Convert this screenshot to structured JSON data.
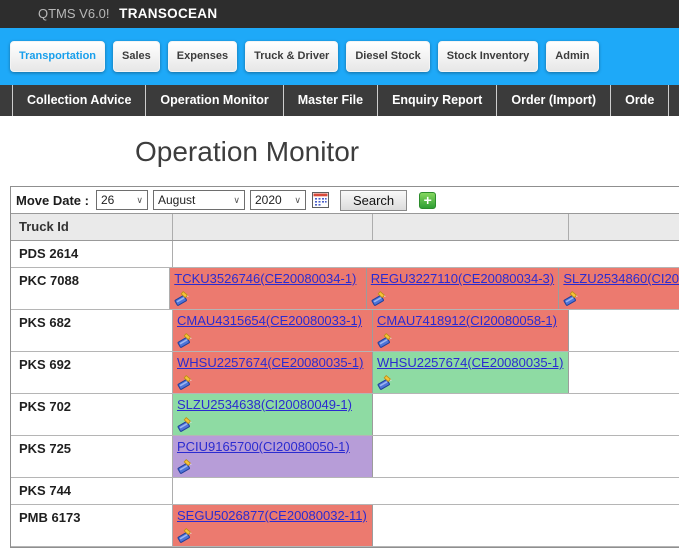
{
  "topbar": {
    "app_name": "QTMS V6.0!",
    "company": "TRANSOCEAN"
  },
  "tabs": {
    "items": [
      {
        "label": "Transportation",
        "active": true
      },
      {
        "label": "Sales",
        "active": false
      },
      {
        "label": "Expenses",
        "active": false
      },
      {
        "label": "Truck & Driver",
        "active": false
      },
      {
        "label": "Diesel Stock",
        "active": false
      },
      {
        "label": "Stock Inventory",
        "active": false
      },
      {
        "label": "Admin",
        "active": false
      }
    ]
  },
  "menu": {
    "items": [
      "Collection Advice",
      "Operation Monitor",
      "Master File",
      "Enquiry Report",
      "Order (Import)",
      "Orde"
    ]
  },
  "page": {
    "title": "Operation Monitor"
  },
  "filter": {
    "label": "Move Date :",
    "day": "26",
    "month": "August",
    "year": "2020",
    "search_label": "Search"
  },
  "icons": {
    "chevron": "∨",
    "add": "+",
    "calendar": "calendar-icon",
    "edit": "edit-note-icon"
  },
  "colors": {
    "accent": "#1ea9f8",
    "link": "#2b2bd0",
    "red": "#ec7a6f",
    "green": "#8edba3",
    "purple": "#b79dd8",
    "header_bg": "#eaeaea"
  },
  "table": {
    "columns": [
      "Truck Id",
      "",
      "",
      ""
    ],
    "rows": [
      {
        "truck": "PDS 2614",
        "cells": []
      },
      {
        "truck": "PKC 7088",
        "cells": [
          {
            "label": "TCKU3526746(CE20080034-1)",
            "color": "red"
          },
          {
            "label": "REGU3227110(CE20080034-3)",
            "color": "red"
          },
          {
            "label": "SLZU2534860(CI20",
            "color": "red"
          }
        ]
      },
      {
        "truck": "PKS 682",
        "cells": [
          {
            "label": "CMAU4315654(CE20080033-1)",
            "color": "red"
          },
          {
            "label": "CMAU7418912(CI20080058-1)",
            "color": "red"
          }
        ]
      },
      {
        "truck": "PKS 692",
        "cells": [
          {
            "label": "WHSU2257674(CE20080035-1)",
            "color": "red"
          },
          {
            "label": "WHSU2257674(CE20080035-1)",
            "color": "green"
          }
        ]
      },
      {
        "truck": "PKS 702",
        "cells": [
          {
            "label": "SLZU2534638(CI20080049-1)",
            "color": "green"
          }
        ]
      },
      {
        "truck": "PKS 725",
        "cells": [
          {
            "label": "PCIU9165700(CI20080050-1)",
            "color": "purple"
          }
        ]
      },
      {
        "truck": "PKS 744",
        "cells": []
      },
      {
        "truck": "PMB 6173",
        "cells": [
          {
            "label": "SEGU5026877(CE20080032-11)",
            "color": "red"
          }
        ]
      }
    ]
  }
}
